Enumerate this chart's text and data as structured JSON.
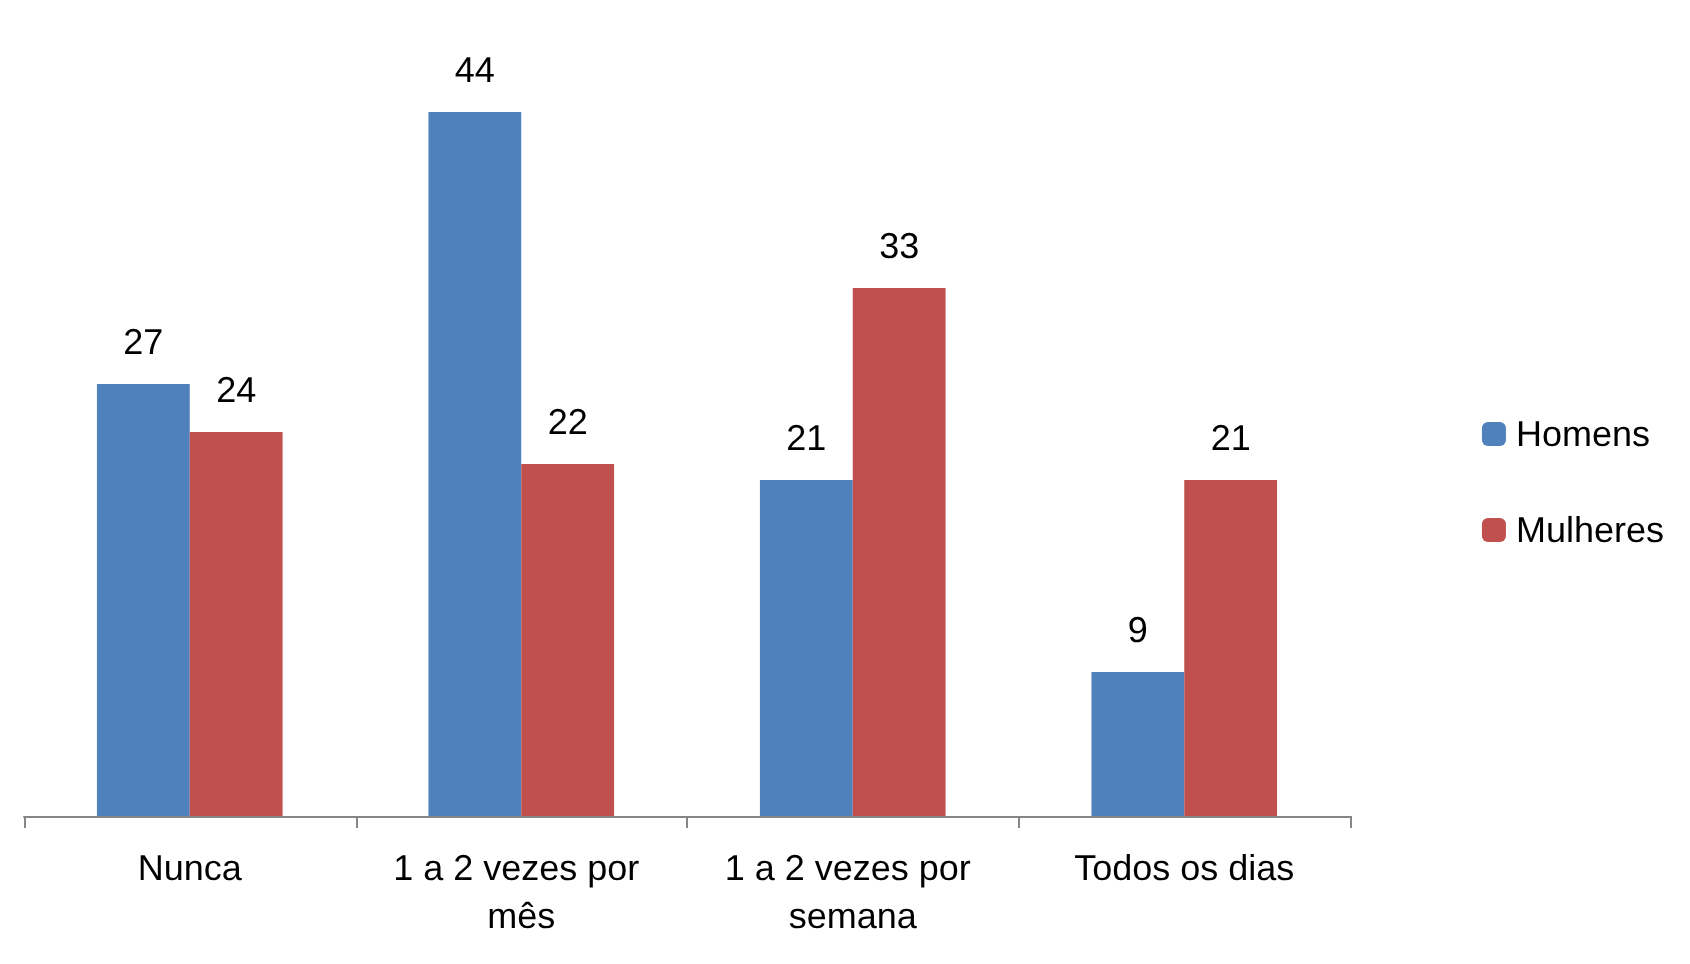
{
  "chart_data": {
    "type": "bar",
    "categories": [
      "Nunca",
      "1 a 2 vezes por mês",
      "1 a 2 vezes por semana",
      "Todos os dias"
    ],
    "series": [
      {
        "name": "Homens",
        "color": "#4f81bd",
        "values": [
          27,
          44,
          21,
          9
        ]
      },
      {
        "name": "Mulheres",
        "color": "#c0504d",
        "values": [
          24,
          22,
          33,
          21
        ]
      }
    ],
    "data_labels": true,
    "legend": "right"
  }
}
